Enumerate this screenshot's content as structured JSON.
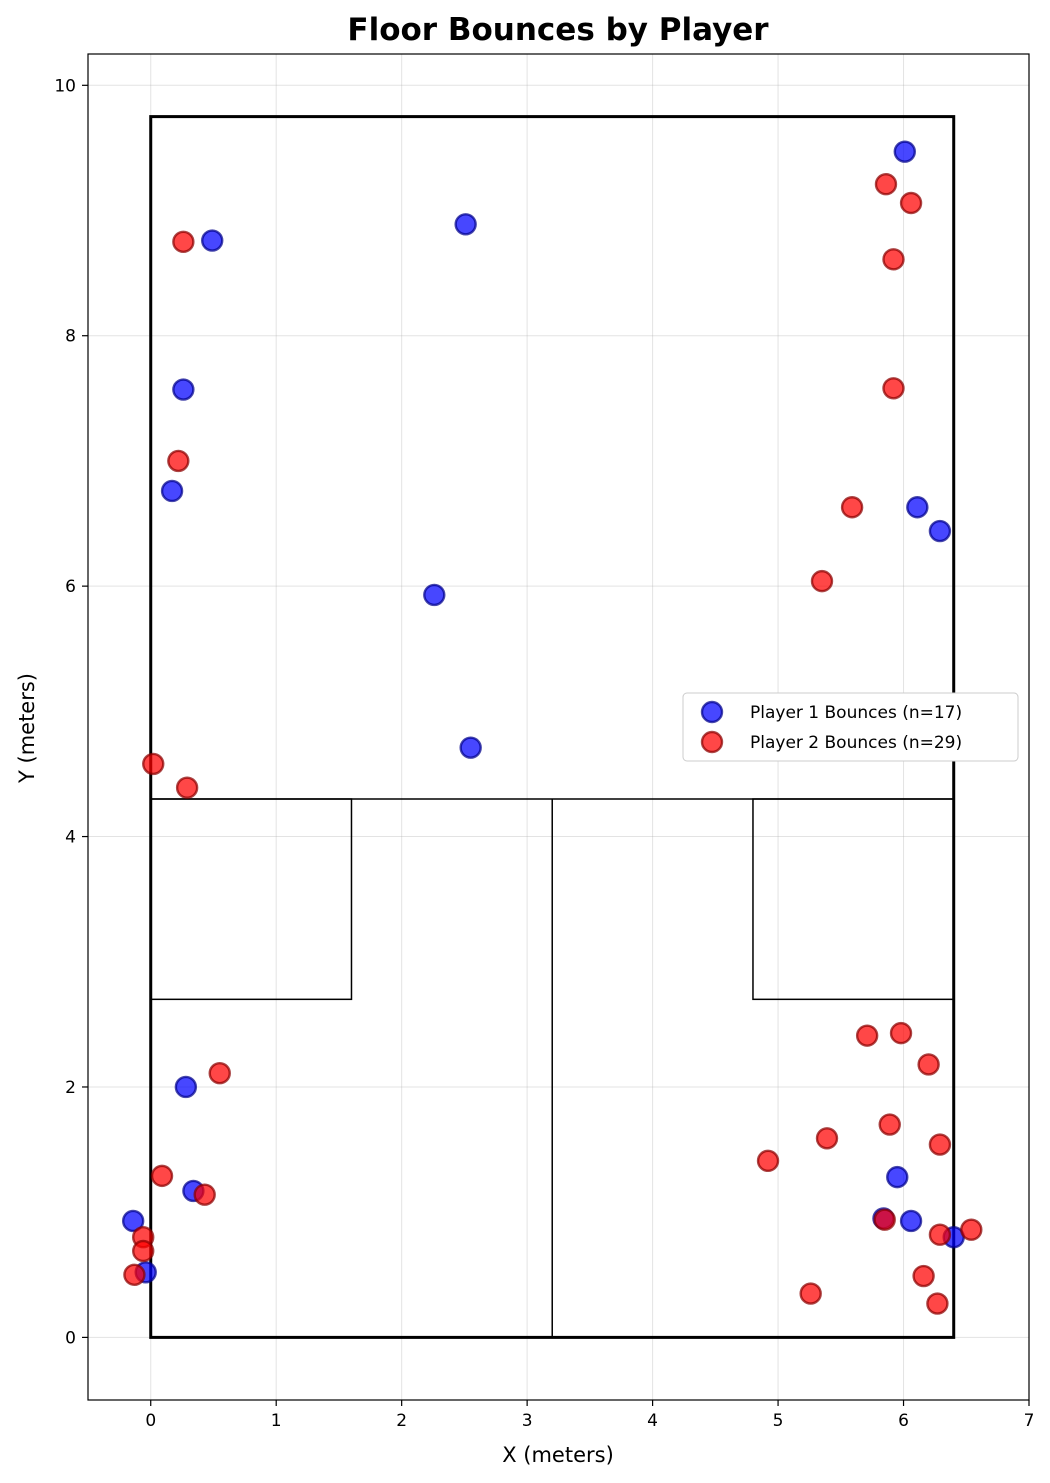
{
  "chart_data": {
    "type": "scatter",
    "title": "Floor Bounces by Player",
    "xlabel": "X (meters)",
    "ylabel": "Y (meters)",
    "xlim": [
      -0.5,
      7
    ],
    "ylim": [
      -0.5,
      10.25
    ],
    "xticks": [
      0,
      1,
      2,
      3,
      4,
      5,
      6,
      7
    ],
    "yticks": [
      0,
      2,
      4,
      6,
      8,
      10
    ],
    "grid": true,
    "legend_position": "right-middle",
    "court": {
      "width": 6.4,
      "length": 9.75,
      "short_line": 4.3,
      "half_court_x": 3.2,
      "service_box_size": 1.6,
      "service_box_bottom": 2.7
    },
    "series": [
      {
        "name": "Player 1 Bounces (n=17)",
        "color": "#0000ff",
        "points": [
          [
            6.01,
            9.47
          ],
          [
            2.51,
            8.89
          ],
          [
            0.49,
            8.76
          ],
          [
            0.26,
            7.57
          ],
          [
            0.17,
            6.76
          ],
          [
            6.11,
            6.63
          ],
          [
            6.29,
            6.44
          ],
          [
            2.26,
            5.93
          ],
          [
            2.55,
            4.71
          ],
          [
            0.28,
            2.0
          ],
          [
            0.34,
            1.17
          ],
          [
            -0.14,
            0.93
          ],
          [
            -0.04,
            0.52
          ],
          [
            5.95,
            1.28
          ],
          [
            5.84,
            0.95
          ],
          [
            6.06,
            0.93
          ],
          [
            6.4,
            0.8
          ]
        ]
      },
      {
        "name": "Player 2 Bounces (n=29)",
        "color": "#ff0000",
        "points": [
          [
            5.86,
            9.21
          ],
          [
            6.06,
            9.06
          ],
          [
            0.26,
            8.75
          ],
          [
            5.92,
            8.61
          ],
          [
            5.92,
            7.58
          ],
          [
            0.22,
            7.0
          ],
          [
            5.59,
            6.63
          ],
          [
            5.35,
            6.04
          ],
          [
            0.02,
            4.58
          ],
          [
            0.29,
            4.39
          ],
          [
            0.55,
            2.11
          ],
          [
            0.09,
            1.29
          ],
          [
            0.43,
            1.14
          ],
          [
            -0.06,
            0.8
          ],
          [
            -0.06,
            0.69
          ],
          [
            -0.13,
            0.5
          ],
          [
            5.71,
            2.41
          ],
          [
            5.98,
            2.43
          ],
          [
            6.2,
            2.18
          ],
          [
            5.89,
            1.7
          ],
          [
            5.39,
            1.59
          ],
          [
            6.29,
            1.54
          ],
          [
            4.92,
            1.41
          ],
          [
            5.85,
            0.94
          ],
          [
            6.29,
            0.82
          ],
          [
            6.54,
            0.86
          ],
          [
            6.16,
            0.49
          ],
          [
            6.27,
            0.27
          ],
          [
            5.26,
            0.35
          ]
        ]
      }
    ]
  }
}
